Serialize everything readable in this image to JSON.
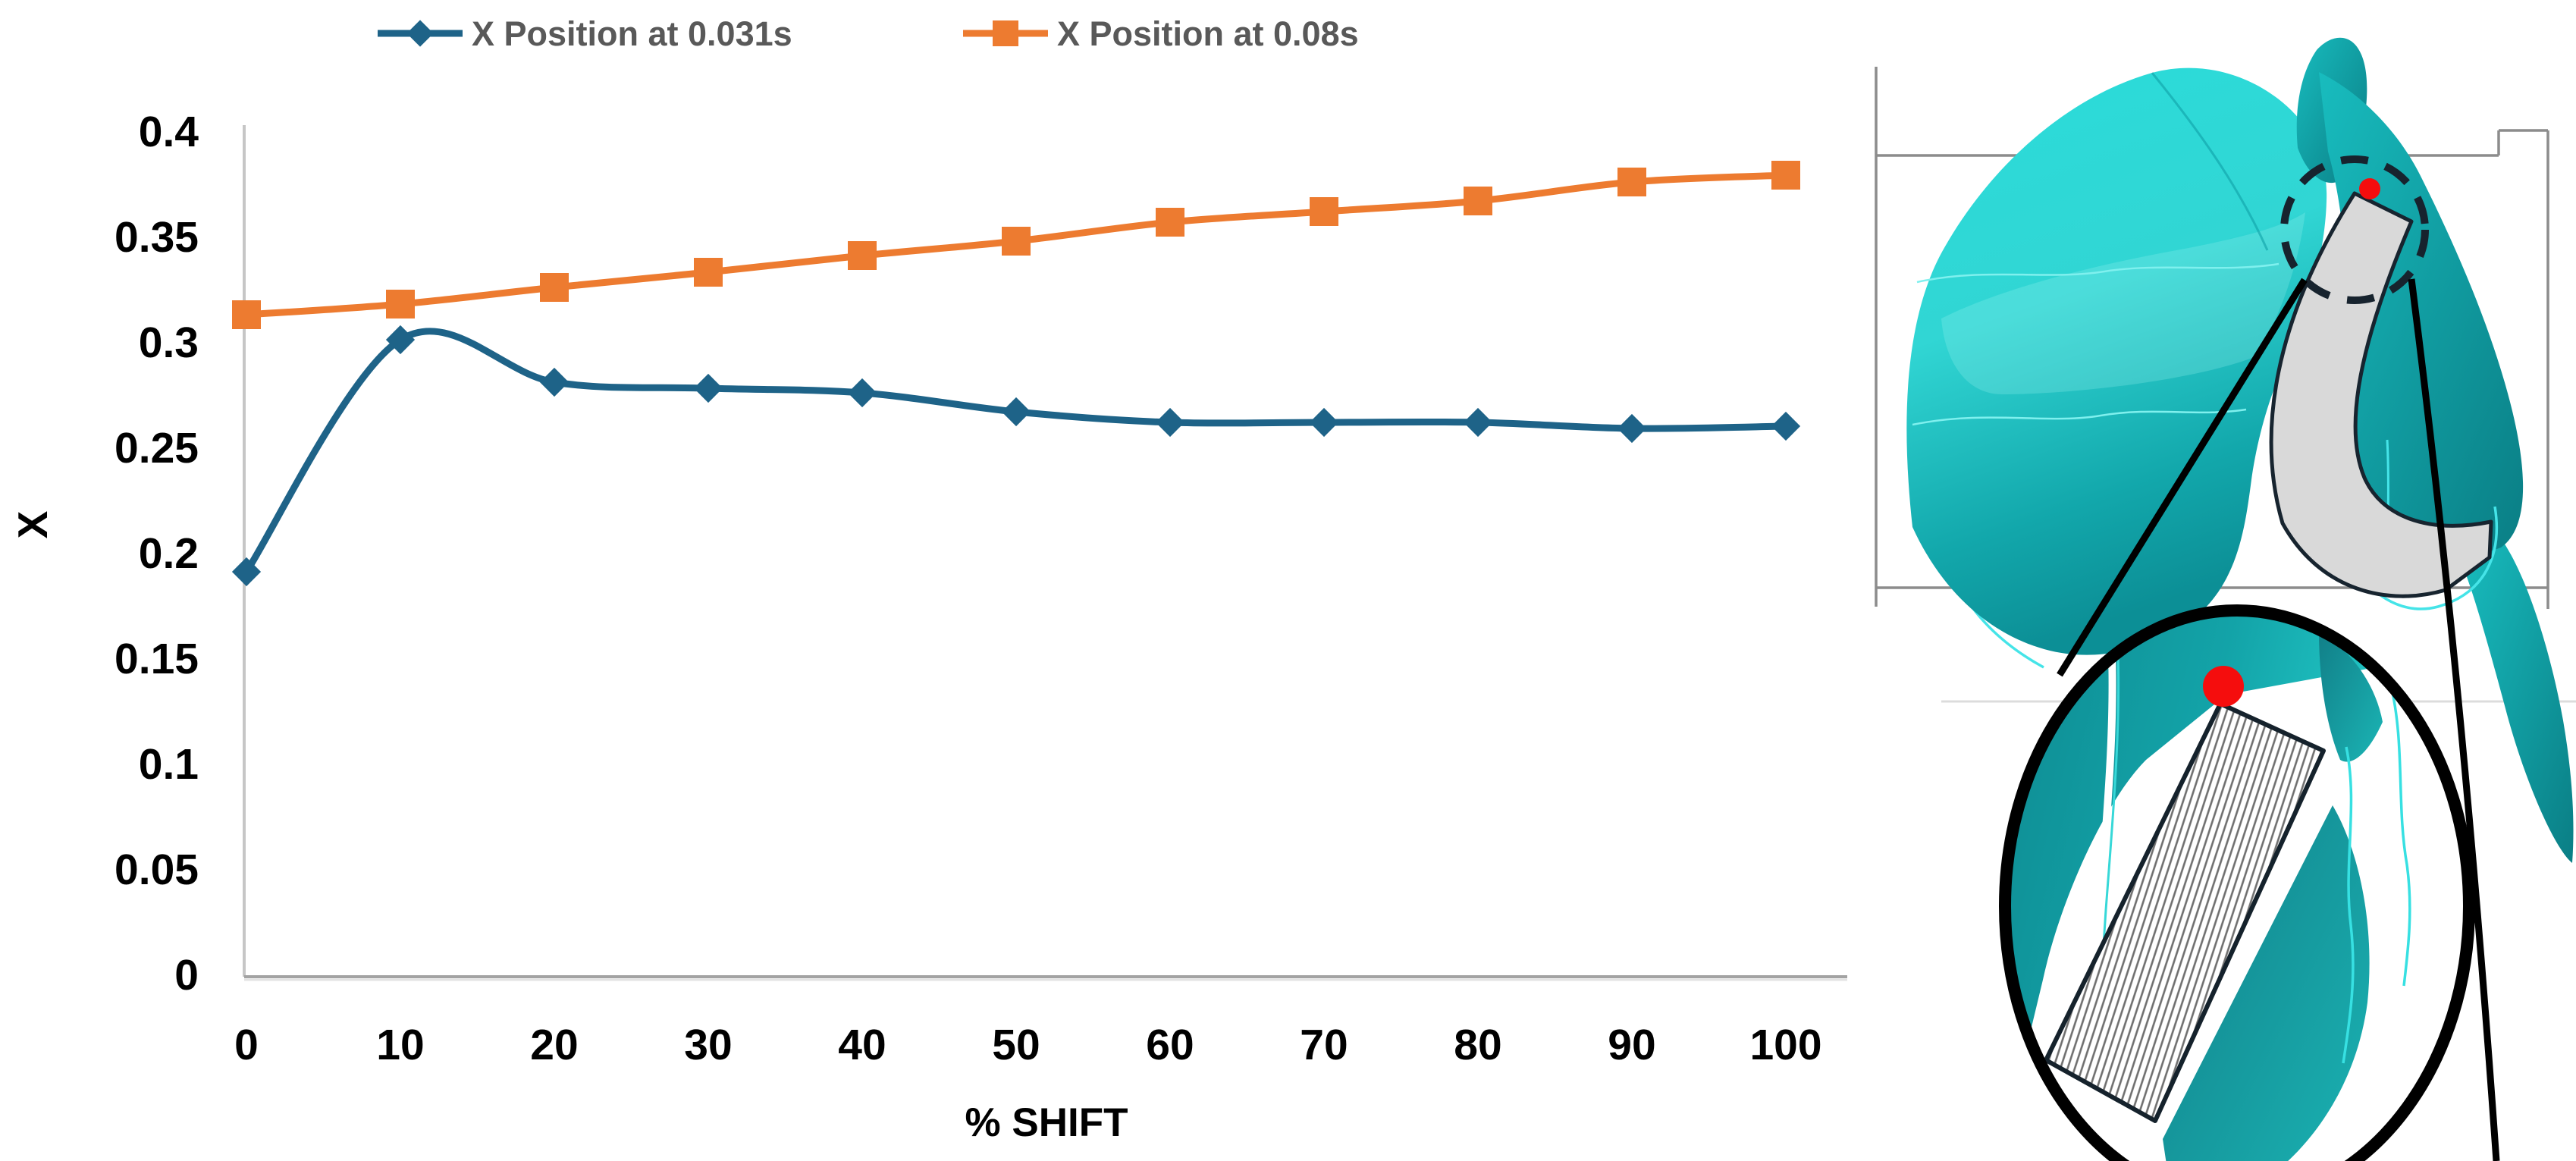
{
  "chart_data": {
    "type": "line",
    "title": "",
    "categories": [
      0,
      10,
      20,
      30,
      40,
      50,
      60,
      70,
      80,
      90,
      100
    ],
    "series": [
      {
        "name": "X Position at 0.031s",
        "color": "#1E6388",
        "marker": "diamond",
        "values": [
          0.191,
          0.301,
          0.281,
          0.278,
          0.276,
          0.267,
          0.262,
          0.262,
          0.262,
          0.259,
          0.26
        ]
      },
      {
        "name": "X Position at 0.08s",
        "color": "#ED7B30",
        "marker": "square",
        "values": [
          0.313,
          0.318,
          0.326,
          0.333,
          0.341,
          0.348,
          0.357,
          0.362,
          0.367,
          0.376,
          0.379
        ]
      }
    ],
    "xlabel": "% SHIFT",
    "ylabel": "X",
    "ylim": [
      0,
      0.4
    ],
    "ytick_step": 0.05,
    "ytick_labels": [
      "0",
      "0.05",
      "0.1",
      "0.15",
      "0.2",
      "0.25",
      "0.3",
      "0.35",
      "0.4"
    ],
    "xtick_labels": [
      "0",
      "10",
      "20",
      "30",
      "40",
      "50",
      "60",
      "70",
      "80",
      "90",
      "100"
    ],
    "legend_position": "top",
    "grid": false,
    "smooth": true
  },
  "illustration": {
    "description_names": [
      "teal-3d-surface",
      "gray-ligament-band",
      "tracked-point-dot",
      "zoom-callout"
    ],
    "colors": {
      "teal_bright": "#2BD9D7",
      "teal_mid": "#14AFB2",
      "teal_dark": "#0B838A",
      "cyan_wire": "#40E6E8",
      "band_gray": "#D9D9D9",
      "band_edge": "#17242F",
      "red": "#F50D0D",
      "box_gray": "#8C8C8C",
      "magnifier_ring": "#000000",
      "hatch_stroke": "#6F6F6F"
    }
  }
}
